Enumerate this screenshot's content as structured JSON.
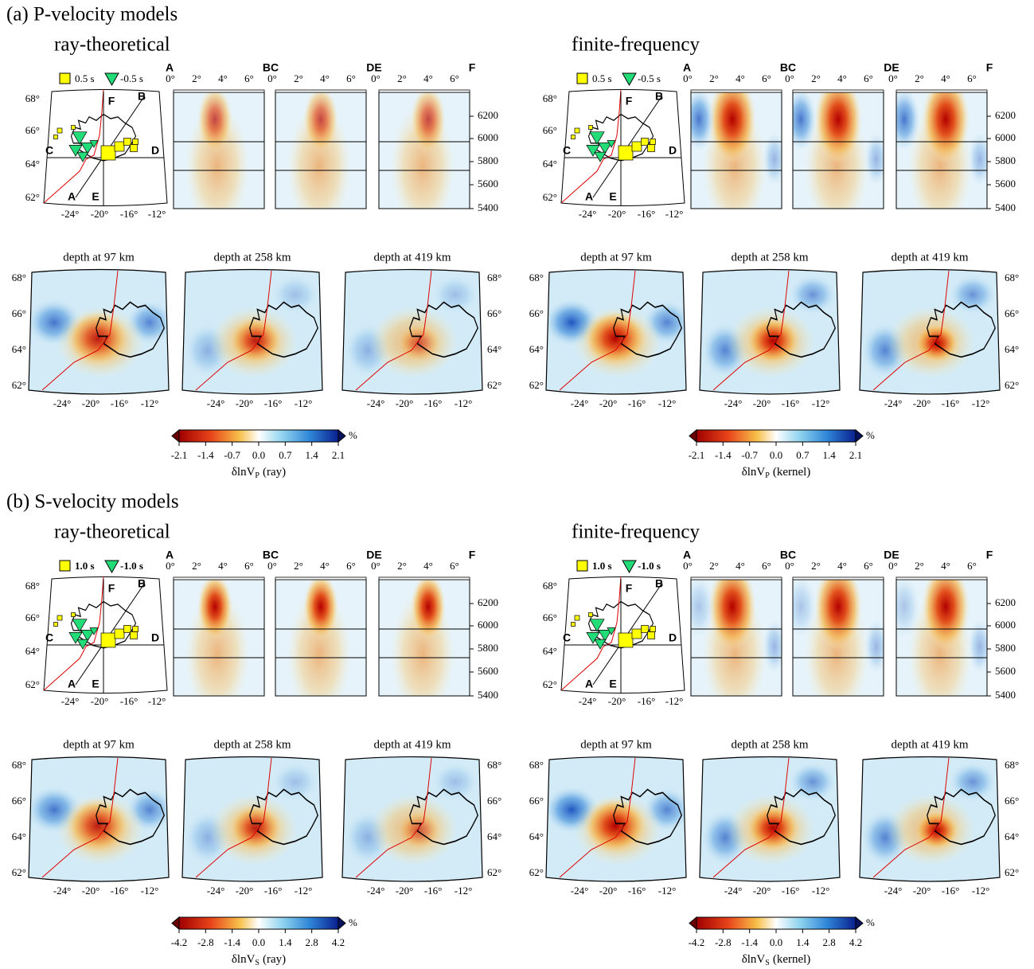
{
  "sections": [
    {
      "title": "(a) P-velocity models",
      "panels": [
        {
          "title": "ray-theoretical",
          "legend": {
            "square": "0.5 s",
            "triangle": "-0.5 s"
          },
          "profile_labels": [
            "A",
            "B",
            "C",
            "D",
            "E",
            "F"
          ],
          "section_labels": [
            "A",
            "BC",
            "DE",
            "F"
          ],
          "section_xticks": [
            "0°",
            "2°",
            "4°",
            "6°"
          ],
          "radius_ticks": [
            "6200",
            "6000",
            "5800",
            "5600",
            "5400"
          ],
          "lat_ticks": [
            "68°",
            "66°",
            "64°",
            "62°"
          ],
          "lon_ticks": [
            "-24°",
            "-20°",
            "-16°",
            "-12°"
          ],
          "depth_titles": [
            "depth at 97 km",
            "depth at 258 km",
            "depth at 419 km"
          ],
          "colorbar": {
            "ticks": [
              "-2.1",
              "-1.4",
              "-0.7",
              "0.0",
              "0.7",
              "1.4",
              "2.1"
            ],
            "unit": "%",
            "label": "δlnV",
            "subscript": "P",
            "suffix": "(ray)"
          }
        },
        {
          "title": "finite-frequency",
          "legend": {
            "square": "0.5 s",
            "triangle": "-0.5 s"
          },
          "profile_labels": [
            "A",
            "B",
            "C",
            "D",
            "E",
            "F"
          ],
          "section_labels": [
            "A",
            "BC",
            "DE",
            "F"
          ],
          "section_xticks": [
            "0°",
            "2°",
            "4°",
            "6°"
          ],
          "radius_ticks": [
            "6200",
            "6000",
            "5800",
            "5600",
            "5400"
          ],
          "lat_ticks": [
            "68°",
            "66°",
            "64°",
            "62°"
          ],
          "lon_ticks": [
            "-24°",
            "-20°",
            "-16°",
            "-12°"
          ],
          "depth_titles": [
            "depth at 97 km",
            "depth at 258 km",
            "depth at 419 km"
          ],
          "colorbar": {
            "ticks": [
              "-2.1",
              "-1.4",
              "-0.7",
              "0.0",
              "0.7",
              "1.4",
              "2.1"
            ],
            "unit": "%",
            "label": "δlnV",
            "subscript": "P",
            "suffix": "(kernel)"
          }
        }
      ]
    },
    {
      "title": "(b) S-velocity models",
      "panels": [
        {
          "title": "ray-theoretical",
          "legend": {
            "square": "1.0 s",
            "triangle": "-1.0 s"
          },
          "profile_labels": [
            "A",
            "B",
            "C",
            "D",
            "E",
            "F"
          ],
          "section_labels": [
            "A",
            "BC",
            "DE",
            "F"
          ],
          "section_xticks": [
            "0°",
            "2°",
            "4°",
            "6°"
          ],
          "radius_ticks": [
            "6200",
            "6000",
            "5800",
            "5600",
            "5400"
          ],
          "lat_ticks": [
            "68°",
            "66°",
            "64°",
            "62°"
          ],
          "lon_ticks": [
            "-24°",
            "-20°",
            "-16°",
            "-12°"
          ],
          "depth_titles": [
            "depth at 97 km",
            "depth at 258 km",
            "depth at 419 km"
          ],
          "colorbar": {
            "ticks": [
              "-4.2",
              "-2.8",
              "-1.4",
              "0.0",
              "1.4",
              "2.8",
              "4.2"
            ],
            "unit": "%",
            "label": "δlnV",
            "subscript": "S",
            "suffix": "(ray)"
          }
        },
        {
          "title": "finite-frequency",
          "legend": {
            "square": "1.0 s",
            "triangle": "-1.0 s"
          },
          "profile_labels": [
            "A",
            "B",
            "C",
            "D",
            "E",
            "F"
          ],
          "section_labels": [
            "A",
            "BC",
            "DE",
            "F"
          ],
          "section_xticks": [
            "0°",
            "2°",
            "4°",
            "6°"
          ],
          "radius_ticks": [
            "6200",
            "6000",
            "5800",
            "5600",
            "5400"
          ],
          "lat_ticks": [
            "68°",
            "66°",
            "64°",
            "62°"
          ],
          "lon_ticks": [
            "-24°",
            "-20°",
            "-16°",
            "-12°"
          ],
          "depth_titles": [
            "depth at 97 km",
            "depth at 258 km",
            "depth at 419 km"
          ],
          "colorbar": {
            "ticks": [
              "-4.2",
              "-2.8",
              "-1.4",
              "0.0",
              "1.4",
              "2.8",
              "4.2"
            ],
            "unit": "%",
            "label": "δlnV",
            "subscript": "S",
            "suffix": "(kernel)"
          }
        }
      ]
    }
  ]
}
